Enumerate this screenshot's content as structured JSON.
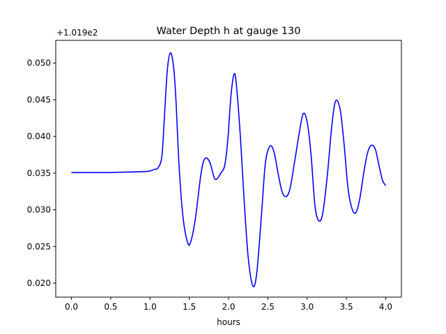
{
  "chart_data": {
    "type": "line",
    "title": "Water Depth h at gauge 130",
    "xlabel": "hours",
    "ylabel": "",
    "y_offset_label": "+1.019e2",
    "xlim": [
      -0.2,
      4.2
    ],
    "ylim": [
      0.0181,
      0.0531
    ],
    "x_ticks": [
      0.0,
      0.5,
      1.0,
      1.5,
      2.0,
      2.5,
      3.0,
      3.5,
      4.0
    ],
    "x_tick_labels": [
      "0.0",
      "0.5",
      "1.0",
      "1.5",
      "2.0",
      "2.5",
      "3.0",
      "3.5",
      "4.0"
    ],
    "y_ticks": [
      0.02,
      0.025,
      0.03,
      0.035,
      0.04,
      0.045,
      0.05
    ],
    "y_tick_labels": [
      "0.020",
      "0.025",
      "0.030",
      "0.035",
      "0.040",
      "0.045",
      "0.050"
    ],
    "grid": false,
    "line_color": "#0000ff",
    "series": [
      {
        "x": [
          0.0,
          0.5,
          0.9,
          1.0,
          1.05,
          1.1,
          1.15,
          1.18,
          1.22,
          1.26,
          1.3,
          1.33,
          1.37,
          1.42,
          1.48,
          1.52,
          1.58,
          1.65,
          1.7,
          1.76,
          1.82,
          1.86,
          1.9,
          1.95,
          1.99,
          2.03,
          2.07,
          2.1,
          2.15,
          2.2,
          2.25,
          2.31,
          2.36,
          2.42,
          2.47,
          2.53,
          2.58,
          2.63,
          2.68,
          2.73,
          2.78,
          2.84,
          2.9,
          2.95,
          3.0,
          3.05,
          3.1,
          3.15,
          3.2,
          3.26,
          3.31,
          3.36,
          3.42,
          3.47,
          3.52,
          3.57,
          3.62,
          3.67,
          3.72,
          3.77,
          3.82,
          3.87,
          3.92,
          3.96,
          4.0
        ],
        "y": [
          0.0351,
          0.0351,
          0.0352,
          0.0353,
          0.0355,
          0.0357,
          0.0372,
          0.042,
          0.049,
          0.0514,
          0.0495,
          0.045,
          0.036,
          0.029,
          0.0255,
          0.0257,
          0.029,
          0.035,
          0.037,
          0.0365,
          0.0343,
          0.0343,
          0.035,
          0.036,
          0.0395,
          0.0455,
          0.0485,
          0.047,
          0.04,
          0.031,
          0.0235,
          0.0196,
          0.0215,
          0.0295,
          0.0365,
          0.0387,
          0.0378,
          0.035,
          0.0325,
          0.0318,
          0.0328,
          0.0365,
          0.0405,
          0.0431,
          0.042,
          0.0375,
          0.0305,
          0.0285,
          0.0296,
          0.035,
          0.041,
          0.0448,
          0.0437,
          0.039,
          0.033,
          0.0302,
          0.0296,
          0.0315,
          0.035,
          0.0378,
          0.0388,
          0.0382,
          0.0358,
          0.034,
          0.0333
        ]
      }
    ]
  }
}
